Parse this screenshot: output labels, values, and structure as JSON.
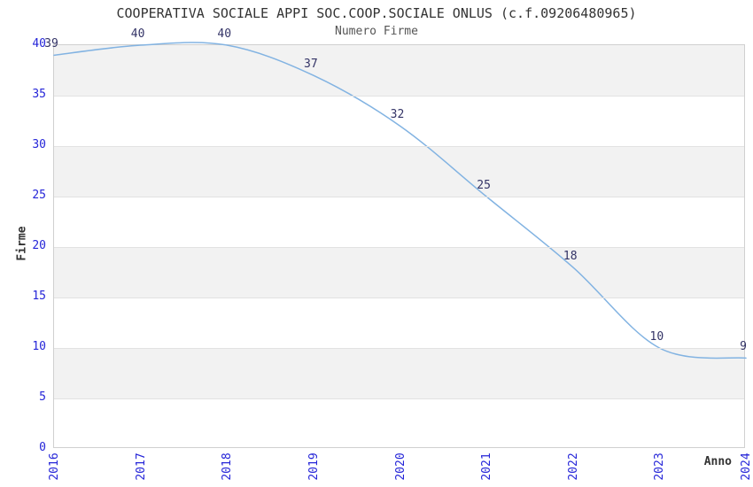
{
  "chart_data": {
    "type": "line",
    "title": "COOPERATIVA SOCIALE APPI SOC.COOP.SOCIALE ONLUS (c.f.09206480965)",
    "subtitle": "Numero Firme",
    "xlabel": "Anno",
    "ylabel": "Firme",
    "x": [
      "2016",
      "2017",
      "2018",
      "2019",
      "2020",
      "2021",
      "2022",
      "2023",
      "2024"
    ],
    "series": [
      {
        "name": "Numero Firme",
        "values": [
          39,
          40,
          40,
          37,
          32,
          25,
          18,
          10,
          9
        ]
      }
    ],
    "ylim": [
      0,
      40
    ],
    "yticks": [
      0,
      5,
      10,
      15,
      20,
      25,
      30,
      35,
      40
    ],
    "grid": "horizontal-bands-alternating",
    "legend_position": "none",
    "data_labels_visible": true,
    "colors": {
      "line": "#82b3e2",
      "tick_labels": "#2525d8",
      "data_labels": "#333366",
      "band": "#f2f2f2",
      "gridline": "#e2e2e2",
      "plot_border": "#d0d0d0",
      "title_text": "#333333",
      "subtitle_text": "#555555",
      "axis_title_text": "#333333",
      "background": "#ffffff"
    }
  }
}
